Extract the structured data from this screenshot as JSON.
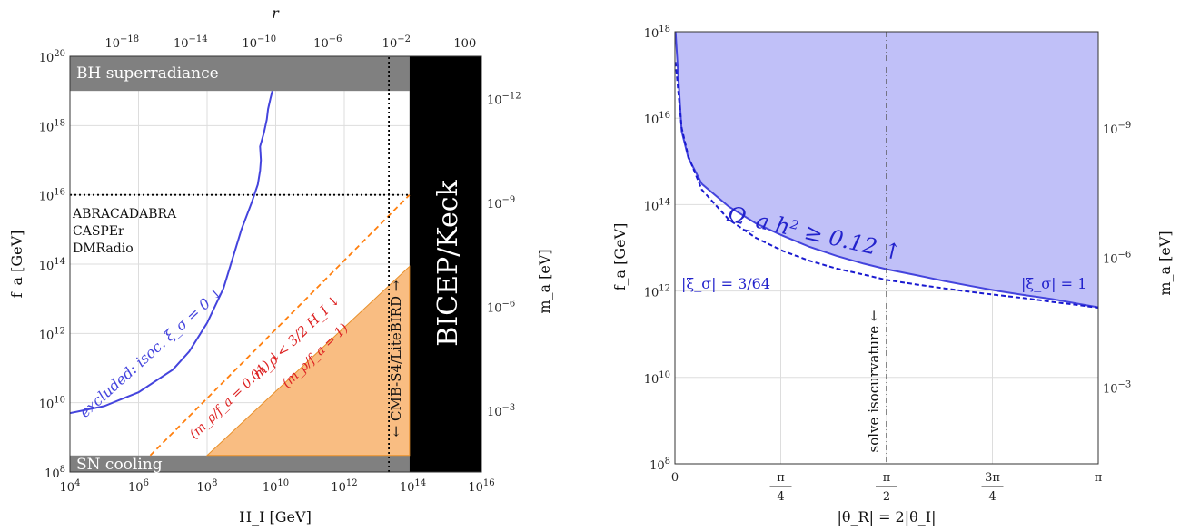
{
  "chart_data": [
    {
      "type": "area",
      "x_axis": {
        "label": "H_I [GeV]",
        "scale": "log",
        "range": [
          10000.0,
          1e+16
        ],
        "ticks": [
          "10^4",
          "10^6",
          "10^8",
          "10^10",
          "10^12",
          "10^14",
          "10^16"
        ]
      },
      "y_axis": {
        "label": "f_a [GeV]",
        "scale": "log",
        "range": [
          100000000.0,
          1e+20
        ],
        "ticks": [
          "10^8",
          "10^10",
          "10^12",
          "10^14",
          "10^16",
          "10^18",
          "10^20"
        ]
      },
      "top_axis": {
        "label": "r",
        "ticks": [
          {
            "label": "10^-18",
            "at_HI": 330000.0
          },
          {
            "label": "10^-14",
            "at_HI": 33000000.0
          },
          {
            "label": "10^-10",
            "at_HI": 3300000000.0
          },
          {
            "label": "10^-6",
            "at_HI": 330000000000.0
          },
          {
            "label": "10^-2",
            "at_HI": 33000000000000.0
          },
          {
            "label": "100",
            "at_HI": 3300000000000000.0
          }
        ]
      },
      "right_axis": {
        "label": "m_a [eV]",
        "ticks": [
          {
            "label": "10^-12",
            "at_fa": 5.7e+18
          },
          {
            "label": "10^-9",
            "at_fa": 5700000000000000.0
          },
          {
            "label": "10^-6",
            "at_fa": 5700000000000.0
          },
          {
            "label": "10^-3",
            "at_fa": 5700000000.0
          }
        ]
      },
      "regions": [
        {
          "name": "BH superradiance",
          "fa_range": [
            1e+19,
            1e+20
          ],
          "HI_range": [
            10000.0,
            80000000000000.0
          ],
          "color": "#808080"
        },
        {
          "name": "SN cooling",
          "fa_range": [
            100000000.0,
            300000000.0
          ],
          "HI_range": [
            10000.0,
            80000000000000.0
          ],
          "color": "#808080"
        },
        {
          "name": "BICEP/Keck",
          "HI_range": [
            80000000000000.0,
            1e+16
          ],
          "color": "#000000"
        },
        {
          "name": "m_ρ < 3/2 H_I ↓",
          "sublabel": "(m_ρ/f_a = 1)",
          "color": "#f9bd82",
          "vertices": [
            [
              100000000.0,
              300000000.0
            ],
            [
              80000000000000.0,
              300000000.0
            ],
            [
              80000000000000.0,
              86000000000000.0
            ]
          ]
        }
      ],
      "lines": [
        {
          "name": "excluded:  isoc. ξ_σ = 0 ↓",
          "color": "#4444dd",
          "style": "solid",
          "points": [
            [
              10000.0,
              5000000000.0
            ],
            [
              100000.0,
              8000000000.0
            ],
            [
              1000000.0,
              20000000000.0
            ],
            [
              10000000.0,
              90000000000.0
            ],
            [
              30000000.0,
              300000000000.0
            ],
            [
              100000000.0,
              2000000000000.0
            ],
            [
              300000000.0,
              20000000000000.0
            ],
            [
              1000000000.0,
              1000000000000000.0
            ],
            [
              2000000000.0,
              6000000000000000.0
            ],
            [
              3000000000.0,
              2e+16
            ],
            [
              3500000000.0,
              5e+16
            ],
            [
              3700000000.0,
              1e+17
            ],
            [
              3500000000.0,
              2.5e+17
            ],
            [
              4500000000.0,
              6e+17
            ],
            [
              5500000000.0,
              1.5e+18
            ],
            [
              6000000000.0,
              3e+18
            ],
            [
              7000000000.0,
              6e+18
            ],
            [
              8000000000.0,
              1e+19
            ]
          ]
        },
        {
          "name": "(m_ρ/f_a = 0.01) ↓",
          "color": "#ff7f0e",
          "style": "dashed",
          "points": [
            [
              2200000.0,
              300000000.0
            ],
            [
              80000000000000.0,
              1e+16
            ]
          ]
        },
        {
          "name": "ABRACADABRA / CASPEr / DMRadio",
          "color": "#000000",
          "style": "dotted",
          "points": [
            [
              10000.0,
              1e+16
            ],
            [
              80000000000000.0,
              1e+16
            ]
          ]
        },
        {
          "name": "CMB-S4/LiteBIRD",
          "color": "#000000",
          "style": "dotted",
          "points": [
            [
              20000000000000.0,
              100000000.0
            ],
            [
              20000000000000.0,
              1e+20
            ]
          ]
        }
      ],
      "annotations": [
        "BH superradiance",
        "ABRACADABRA",
        "CASPEr",
        "DMRadio",
        "SN cooling",
        "BICEP/Keck",
        "← CMB-S4/LiteBIRD →"
      ]
    },
    {
      "type": "area",
      "x_axis": {
        "label": "|θ_R| = 2|θ_I|",
        "range": [
          0,
          3.14159
        ],
        "ticks": [
          "0",
          "π/4",
          "π/2",
          "3π/4",
          "π"
        ]
      },
      "y_axis": {
        "label": "f_a [GeV]",
        "scale": "log",
        "range": [
          100000000.0,
          1e+18
        ],
        "ticks": [
          "10^8",
          "10^10",
          "10^12",
          "10^14",
          "10^16",
          "10^18"
        ]
      },
      "right_axis": {
        "label": "m_a [eV]",
        "ticks": [
          {
            "label": "10^-9",
            "at_fa": 5700000000000000.0
          },
          {
            "label": "10^-6",
            "at_fa": 5700000000000.0
          },
          {
            "label": "10^-3",
            "at_fa": 5700000000.0
          }
        ]
      },
      "series": [
        {
          "name": "|ξ_σ| = 1",
          "color": "#4444dd",
          "style": "solid",
          "fill": "#c0c0f8",
          "x": [
            0.005,
            0.05,
            0.1,
            0.2,
            0.4,
            0.6,
            0.8,
            1.0,
            1.2,
            1.4,
            1.5708,
            1.8,
            2.0,
            2.2,
            2.4,
            2.6,
            2.8,
            3.0,
            3.14
          ],
          "y": [
            1e+18,
            5000000000000000.0,
            1200000000000000.0,
            300000000000000.0,
            90000000000000.0,
            37000000000000.0,
            19000000000000.0,
            10500000000000.0,
            6500000000000.0,
            4300000000000.0,
            3200000000000.0,
            2300000000000.0,
            1700000000000.0,
            1300000000000.0,
            1000000000000.0,
            800000000000.0,
            650000000000.0,
            500000000000.0,
            420000000000.0
          ]
        },
        {
          "name": "|ξ_σ| = 3/64",
          "color": "#1a1ad0",
          "style": "dashed",
          "x": [
            0.005,
            0.02,
            0.05,
            0.1,
            0.2,
            0.4,
            0.6,
            0.8,
            1.0,
            1.2,
            1.4,
            1.5708,
            1.8,
            2.0,
            2.2,
            2.4,
            2.6,
            2.8,
            3.0,
            3.14
          ],
          "y": [
            2e+17,
            6e+16,
            6000000000000000.0,
            1300000000000000.0,
            220000000000000.0,
            45000000000000.0,
            17000000000000.0,
            8500000000000.0,
            5000000000000.0,
            3300000000000.0,
            2400000000000.0,
            1800000000000.0,
            1400000000000.0,
            1150000000000.0,
            950000000000.0,
            800000000000.0,
            680000000000.0,
            560000000000.0,
            470000000000.0,
            410000000000.0
          ]
        }
      ],
      "annotations": [
        "Ω_a h² ≥ 0.12 ↑",
        "|ξ_σ| = 3/64",
        "|ξ_σ| = 1",
        "solve isocurvature ←"
      ],
      "vertical_line": {
        "x": 1.5708,
        "style": "dash-dot",
        "color": "#555555"
      },
      "grid": true
    }
  ]
}
